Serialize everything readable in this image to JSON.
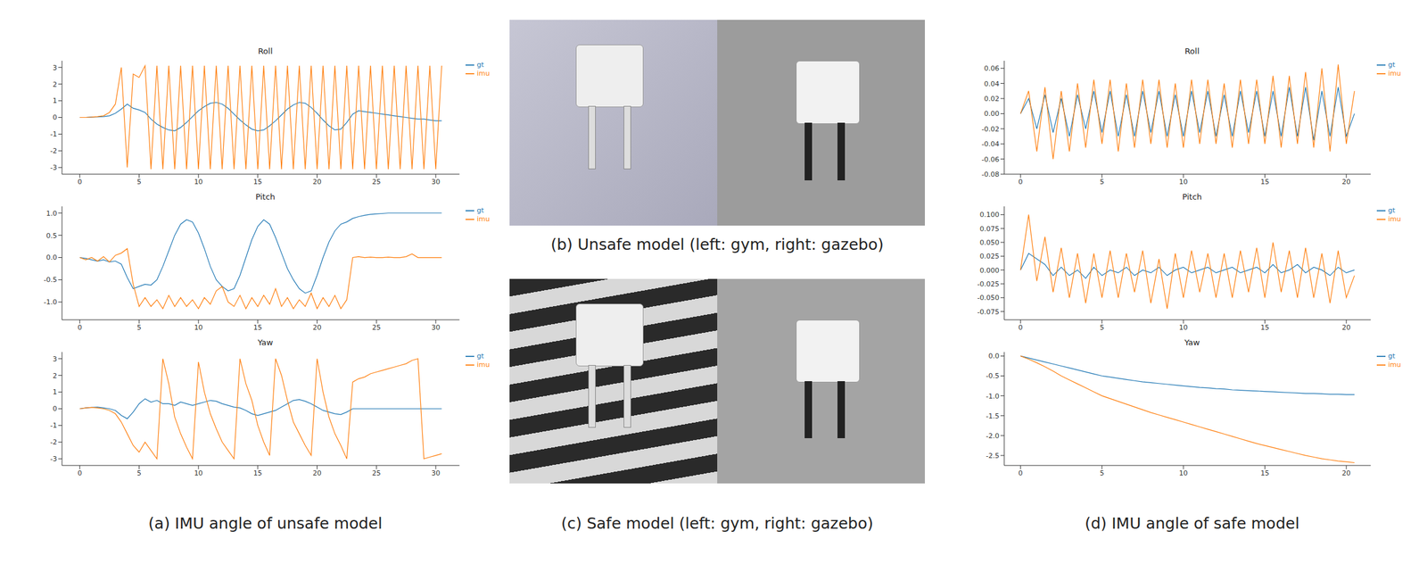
{
  "chart_data": [
    {
      "type": "line",
      "title": "Roll",
      "legend": "right",
      "x": [
        0,
        0.5,
        1,
        1.5,
        2,
        2.5,
        3,
        3.5,
        4,
        4.5,
        5,
        5.5,
        6,
        6.5,
        7,
        7.5,
        8,
        8.5,
        9,
        9.5,
        10,
        10.5,
        11,
        11.5,
        12,
        12.5,
        13,
        13.5,
        14,
        14.5,
        15,
        15.5,
        16,
        16.5,
        17,
        17.5,
        18,
        18.5,
        19,
        19.5,
        20,
        20.5,
        21,
        21.5,
        22,
        22.5,
        23,
        23.5,
        24,
        24.5,
        25,
        25.5,
        26,
        26.5,
        27,
        27.5,
        28,
        28.5,
        29,
        29.5,
        30,
        30.5
      ],
      "xlim": [
        -1.5,
        32
      ],
      "xticks": [
        0,
        5,
        10,
        15,
        20,
        25,
        30
      ],
      "ylim": [
        -3.4,
        3.4
      ],
      "yticks": [
        -3,
        -2,
        -1,
        0,
        1,
        2,
        3
      ],
      "series": [
        {
          "name": "gt",
          "color": "#1f77b4",
          "values": [
            0,
            0,
            0.02,
            0.03,
            0.05,
            0.1,
            0.25,
            0.5,
            0.8,
            0.55,
            0.45,
            0.3,
            -0.1,
            -0.4,
            -0.6,
            -0.75,
            -0.8,
            -0.6,
            -0.3,
            0.05,
            0.4,
            0.65,
            0.85,
            0.9,
            0.8,
            0.55,
            0.2,
            -0.15,
            -0.45,
            -0.7,
            -0.8,
            -0.75,
            -0.5,
            -0.2,
            0.15,
            0.5,
            0.75,
            0.9,
            0.85,
            0.6,
            0.25,
            -0.15,
            -0.5,
            -0.75,
            -0.7,
            -0.3,
            0.2,
            0.4,
            0.35,
            0.3,
            0.25,
            0.2,
            0.15,
            0.1,
            0.05,
            0,
            -0.05,
            -0.1,
            -0.1,
            -0.15,
            -0.2,
            -0.2
          ]
        },
        {
          "name": "imu",
          "color": "#ff7f0e",
          "values": [
            0,
            0,
            0.02,
            0.05,
            0.1,
            0.3,
            0.8,
            3.0,
            -3.0,
            2.6,
            2.4,
            3.1,
            -3.1,
            3.1,
            -3.1,
            3.1,
            -3.1,
            3.1,
            -3.1,
            3.1,
            -3.1,
            3.1,
            -3.1,
            3.1,
            -3.1,
            3.1,
            -3.1,
            3.1,
            -3.1,
            3.1,
            -3.1,
            3.1,
            -3.1,
            3.1,
            -3.1,
            3.1,
            -3.1,
            3.1,
            -3.1,
            3.1,
            -3.1,
            3.1,
            -3.1,
            3.1,
            -3.1,
            3.1,
            -3.1,
            3.1,
            -3.1,
            3.1,
            -3.1,
            3.1,
            -3.1,
            3.1,
            -3.1,
            3.1,
            -3.1,
            3.1,
            -3.1,
            3.1,
            -3.1,
            3.1
          ]
        }
      ]
    },
    {
      "type": "line",
      "title": "Pitch",
      "legend": "right",
      "x": [
        0,
        0.5,
        1,
        1.5,
        2,
        2.5,
        3,
        3.5,
        4,
        4.5,
        5,
        5.5,
        6,
        6.5,
        7,
        7.5,
        8,
        8.5,
        9,
        9.5,
        10,
        10.5,
        11,
        11.5,
        12,
        12.5,
        13,
        13.5,
        14,
        14.5,
        15,
        15.5,
        16,
        16.5,
        17,
        17.5,
        18,
        18.5,
        19,
        19.5,
        20,
        20.5,
        21,
        21.5,
        22,
        22.5,
        23,
        23.5,
        24,
        24.5,
        25,
        25.5,
        26,
        26.5,
        27,
        27.5,
        28,
        28.5,
        29,
        29.5,
        30,
        30.5
      ],
      "xlim": [
        -1.5,
        32
      ],
      "xticks": [
        0,
        5,
        10,
        15,
        20,
        25,
        30
      ],
      "ylim": [
        -1.4,
        1.15
      ],
      "yticks": [
        {
          "value": -1,
          "label": "-1.0"
        },
        -0.5,
        {
          "value": 0,
          "label": "0.0"
        },
        0.5,
        {
          "value": 1,
          "label": "1.0"
        }
      ],
      "series": [
        {
          "name": "gt",
          "color": "#1f77b4",
          "values": [
            0,
            -0.02,
            -0.05,
            -0.08,
            -0.05,
            -0.1,
            -0.08,
            -0.15,
            -0.45,
            -0.7,
            -0.65,
            -0.6,
            -0.62,
            -0.5,
            -0.2,
            0.15,
            0.5,
            0.75,
            0.85,
            0.8,
            0.55,
            0.2,
            -0.2,
            -0.5,
            -0.65,
            -0.75,
            -0.7,
            -0.4,
            0.0,
            0.4,
            0.7,
            0.85,
            0.75,
            0.45,
            0.1,
            -0.25,
            -0.5,
            -0.7,
            -0.8,
            -0.75,
            -0.4,
            0.0,
            0.35,
            0.6,
            0.75,
            0.8,
            0.88,
            0.92,
            0.95,
            0.97,
            0.98,
            0.99,
            1,
            1,
            1,
            1,
            1,
            1,
            1,
            1,
            1,
            1
          ]
        },
        {
          "name": "imu",
          "color": "#ff7f0e",
          "values": [
            0,
            -0.05,
            0,
            -0.08,
            0.02,
            -0.1,
            0.05,
            0.1,
            0.2,
            -0.6,
            -1.1,
            -0.9,
            -1.1,
            -0.95,
            -1.15,
            -0.85,
            -1.1,
            -0.9,
            -1.1,
            -0.95,
            -1.15,
            -0.9,
            -1.05,
            -0.75,
            -0.65,
            -1.0,
            -1.1,
            -0.85,
            -1.15,
            -0.9,
            -1.1,
            -0.85,
            -1.05,
            -0.7,
            -1.1,
            -0.9,
            -1.15,
            -0.95,
            -1.1,
            -0.8,
            -1.15,
            -0.9,
            -1.1,
            -0.85,
            -1.15,
            -0.95,
            0,
            0.02,
            0,
            0.01,
            0,
            0,
            0.01,
            0,
            0,
            0.02,
            0.08,
            0,
            0,
            0,
            0,
            0
          ]
        }
      ]
    },
    {
      "type": "line",
      "title": "Yaw",
      "legend": "right",
      "x": [
        0,
        0.5,
        1,
        1.5,
        2,
        2.5,
        3,
        3.5,
        4,
        4.5,
        5,
        5.5,
        6,
        6.5,
        7,
        7.5,
        8,
        8.5,
        9,
        9.5,
        10,
        10.5,
        11,
        11.5,
        12,
        12.5,
        13,
        13.5,
        14,
        14.5,
        15,
        15.5,
        16,
        16.5,
        17,
        17.5,
        18,
        18.5,
        19,
        19.5,
        20,
        20.5,
        21,
        21.5,
        22,
        22.5,
        23,
        23.5,
        24,
        24.5,
        25,
        25.5,
        26,
        26.5,
        27,
        27.5,
        28,
        28.5,
        29,
        29.5,
        30,
        30.5
      ],
      "xlim": [
        -1.5,
        32
      ],
      "xticks": [
        0,
        5,
        10,
        15,
        20,
        25,
        30
      ],
      "ylim": [
        -3.4,
        3.4
      ],
      "yticks": [
        -3,
        -2,
        -1,
        0,
        1,
        2,
        3
      ],
      "series": [
        {
          "name": "gt",
          "color": "#1f77b4",
          "values": [
            0,
            0.05,
            0.08,
            0.1,
            0.05,
            0,
            -0.1,
            -0.4,
            -0.6,
            -0.2,
            0.3,
            0.6,
            0.4,
            0.5,
            0.3,
            0.3,
            0.2,
            0.4,
            0.3,
            0.2,
            0.3,
            0.4,
            0.5,
            0.45,
            0.3,
            0.2,
            0.1,
            0.05,
            -0.1,
            -0.3,
            -0.4,
            -0.3,
            -0.2,
            -0.1,
            0.1,
            0.3,
            0.5,
            0.55,
            0.45,
            0.3,
            0.1,
            -0.1,
            -0.2,
            -0.3,
            -0.35,
            -0.2,
            0,
            0,
            0,
            0,
            0,
            0,
            0,
            0,
            0,
            0,
            0,
            0,
            0,
            0,
            0,
            0
          ]
        },
        {
          "name": "imu",
          "color": "#ff7f0e",
          "values": [
            0,
            0.05,
            0.08,
            0.05,
            0,
            -0.1,
            -0.3,
            -0.8,
            -1.5,
            -2.2,
            -2.6,
            -2.0,
            -2.5,
            -3.0,
            3.0,
            1.5,
            -0.5,
            -1.5,
            -2.3,
            -3.0,
            2.8,
            1.0,
            -0.3,
            -1.2,
            -2.0,
            -2.5,
            -3.0,
            3.0,
            1.5,
            0.5,
            -1.0,
            -2.0,
            -2.8,
            3.0,
            2.0,
            0.5,
            -0.8,
            -1.5,
            -2.2,
            -2.8,
            3.0,
            1.0,
            -0.5,
            -1.5,
            -2.2,
            -3.0,
            1.6,
            1.8,
            1.9,
            2.1,
            2.2,
            2.3,
            2.4,
            2.5,
            2.6,
            2.7,
            2.9,
            3.0,
            -3.0,
            -2.9,
            -2.8,
            -2.7
          ]
        }
      ]
    },
    {
      "type": "line",
      "title": "Roll",
      "legend": "right",
      "x": [
        0,
        0.5,
        1,
        1.5,
        2,
        2.5,
        3,
        3.5,
        4,
        4.5,
        5,
        5.5,
        6,
        6.5,
        7,
        7.5,
        8,
        8.5,
        9,
        9.5,
        10,
        10.5,
        11,
        11.5,
        12,
        12.5,
        13,
        13.5,
        14,
        14.5,
        15,
        15.5,
        16,
        16.5,
        17,
        17.5,
        18,
        18.5,
        19,
        19.5,
        20,
        20.5
      ],
      "xlim": [
        -1,
        21.5
      ],
      "xticks": [
        0,
        5,
        10,
        15,
        20
      ],
      "ylim": [
        -0.08,
        0.07
      ],
      "yticks": [
        -0.08,
        -0.06,
        -0.04,
        -0.02,
        {
          "value": 0,
          "label": "0.00"
        },
        0.02,
        0.04,
        0.06
      ],
      "series": [
        {
          "name": "gt",
          "color": "#1f77b4",
          "values": [
            0,
            0.02,
            -0.02,
            0.025,
            -0.025,
            0.02,
            -0.03,
            0.025,
            -0.02,
            0.03,
            -0.025,
            0.03,
            -0.03,
            0.025,
            -0.03,
            0.03,
            -0.025,
            0.03,
            -0.03,
            0.025,
            -0.03,
            0.03,
            -0.025,
            0.03,
            -0.03,
            0.025,
            -0.03,
            0.03,
            -0.025,
            0.03,
            -0.03,
            0.03,
            -0.03,
            0.035,
            -0.03,
            0.035,
            -0.035,
            0.03,
            -0.03,
            0.035,
            -0.03,
            0.0
          ]
        },
        {
          "name": "imu",
          "color": "#ff7f0e",
          "values": [
            0,
            0.03,
            -0.05,
            0.035,
            -0.06,
            0.03,
            -0.05,
            0.04,
            -0.045,
            0.045,
            -0.04,
            0.045,
            -0.05,
            0.04,
            -0.045,
            0.045,
            -0.04,
            0.045,
            -0.045,
            0.04,
            -0.045,
            0.045,
            -0.04,
            0.045,
            -0.04,
            0.04,
            -0.045,
            0.045,
            -0.04,
            0.045,
            -0.04,
            0.05,
            -0.045,
            0.05,
            -0.04,
            0.055,
            -0.045,
            0.06,
            -0.05,
            0.065,
            -0.04,
            0.03
          ]
        }
      ]
    },
    {
      "type": "line",
      "title": "Pitch",
      "legend": "right",
      "x": [
        0,
        0.5,
        1,
        1.5,
        2,
        2.5,
        3,
        3.5,
        4,
        4.5,
        5,
        5.5,
        6,
        6.5,
        7,
        7.5,
        8,
        8.5,
        9,
        9.5,
        10,
        10.5,
        11,
        11.5,
        12,
        12.5,
        13,
        13.5,
        14,
        14.5,
        15,
        15.5,
        16,
        16.5,
        17,
        17.5,
        18,
        18.5,
        19,
        19.5,
        20,
        20.5
      ],
      "xlim": [
        -1,
        21.5
      ],
      "xticks": [
        0,
        5,
        10,
        15,
        20
      ],
      "ylim": [
        -0.09,
        0.115
      ],
      "yticks": [
        -0.075,
        {
          "value": -0.05,
          "label": "-0.050"
        },
        -0.025,
        {
          "value": 0,
          "label": "0.000"
        },
        0.025,
        {
          "value": 0.05,
          "label": "0.050"
        },
        0.075,
        {
          "value": 0.1,
          "label": "0.100"
        }
      ],
      "series": [
        {
          "name": "gt",
          "color": "#1f77b4",
          "values": [
            0,
            0.03,
            0.02,
            0.01,
            -0.01,
            0.005,
            -0.01,
            0.0,
            -0.015,
            0.005,
            -0.01,
            0.0,
            -0.005,
            0.005,
            -0.01,
            0.0,
            -0.005,
            0.005,
            -0.01,
            0.0,
            0.005,
            -0.005,
            0.0,
            0.005,
            -0.005,
            0.0,
            0.005,
            -0.005,
            0.0,
            0.005,
            -0.005,
            0.01,
            -0.005,
            0.0,
            0.01,
            -0.005,
            0.005,
            0.0,
            -0.01,
            0.005,
            -0.005,
            0.0
          ]
        },
        {
          "name": "imu",
          "color": "#ff7f0e",
          "values": [
            0,
            0.1,
            -0.02,
            0.06,
            -0.04,
            0.04,
            -0.05,
            0.03,
            -0.06,
            0.03,
            -0.05,
            0.035,
            -0.05,
            0.03,
            -0.04,
            0.035,
            -0.06,
            0.02,
            -0.07,
            0.03,
            -0.05,
            0.035,
            -0.04,
            0.03,
            -0.05,
            0.03,
            -0.05,
            0.035,
            -0.04,
            0.04,
            -0.05,
            0.05,
            -0.04,
            0.035,
            -0.05,
            0.04,
            -0.05,
            0.03,
            -0.06,
            0.035,
            -0.05,
            -0.01
          ]
        }
      ]
    },
    {
      "type": "line",
      "title": "Yaw",
      "legend": "right",
      "x": [
        0,
        0.5,
        1,
        1.5,
        2,
        2.5,
        3,
        3.5,
        4,
        4.5,
        5,
        5.5,
        6,
        6.5,
        7,
        7.5,
        8,
        8.5,
        9,
        9.5,
        10,
        10.5,
        11,
        11.5,
        12,
        12.5,
        13,
        13.5,
        14,
        14.5,
        15,
        15.5,
        16,
        16.5,
        17,
        17.5,
        18,
        18.5,
        19,
        19.5,
        20,
        20.5
      ],
      "xlim": [
        -1,
        21.5
      ],
      "xticks": [
        0,
        5,
        10,
        15,
        20
      ],
      "ylim": [
        -2.75,
        0.1
      ],
      "yticks": [
        {
          "value": -2.5,
          "label": "-2.5"
        },
        {
          "value": -2,
          "label": "-2.0"
        },
        -1.5,
        {
          "value": -1,
          "label": "-1.0"
        },
        -0.5,
        {
          "value": 0,
          "label": "0.0"
        }
      ],
      "series": [
        {
          "name": "gt",
          "color": "#1f77b4",
          "values": [
            0,
            -0.05,
            -0.1,
            -0.15,
            -0.2,
            -0.25,
            -0.3,
            -0.35,
            -0.4,
            -0.45,
            -0.5,
            -0.53,
            -0.56,
            -0.59,
            -0.62,
            -0.65,
            -0.67,
            -0.69,
            -0.71,
            -0.73,
            -0.75,
            -0.77,
            -0.79,
            -0.8,
            -0.82,
            -0.83,
            -0.85,
            -0.86,
            -0.87,
            -0.88,
            -0.89,
            -0.9,
            -0.91,
            -0.92,
            -0.93,
            -0.94,
            -0.94,
            -0.95,
            -0.96,
            -0.96,
            -0.97,
            -0.97
          ]
        },
        {
          "name": "imu",
          "color": "#ff7f0e",
          "values": [
            0,
            -0.08,
            -0.17,
            -0.27,
            -0.38,
            -0.5,
            -0.6,
            -0.7,
            -0.8,
            -0.9,
            -1.0,
            -1.07,
            -1.14,
            -1.21,
            -1.28,
            -1.35,
            -1.42,
            -1.48,
            -1.54,
            -1.6,
            -1.66,
            -1.72,
            -1.78,
            -1.84,
            -1.9,
            -1.96,
            -2.02,
            -2.08,
            -2.14,
            -2.2,
            -2.25,
            -2.3,
            -2.35,
            -2.4,
            -2.45,
            -2.5,
            -2.54,
            -2.58,
            -2.61,
            -2.64,
            -2.66,
            -2.68
          ]
        }
      ]
    }
  ],
  "captions": [
    "(a) IMU angle of unsafe model",
    "(b) Unsafe model (left: gym, right: gazebo)",
    "(c) Safe model (left: gym, right: gazebo)",
    "(d) IMU angle of safe model"
  ]
}
